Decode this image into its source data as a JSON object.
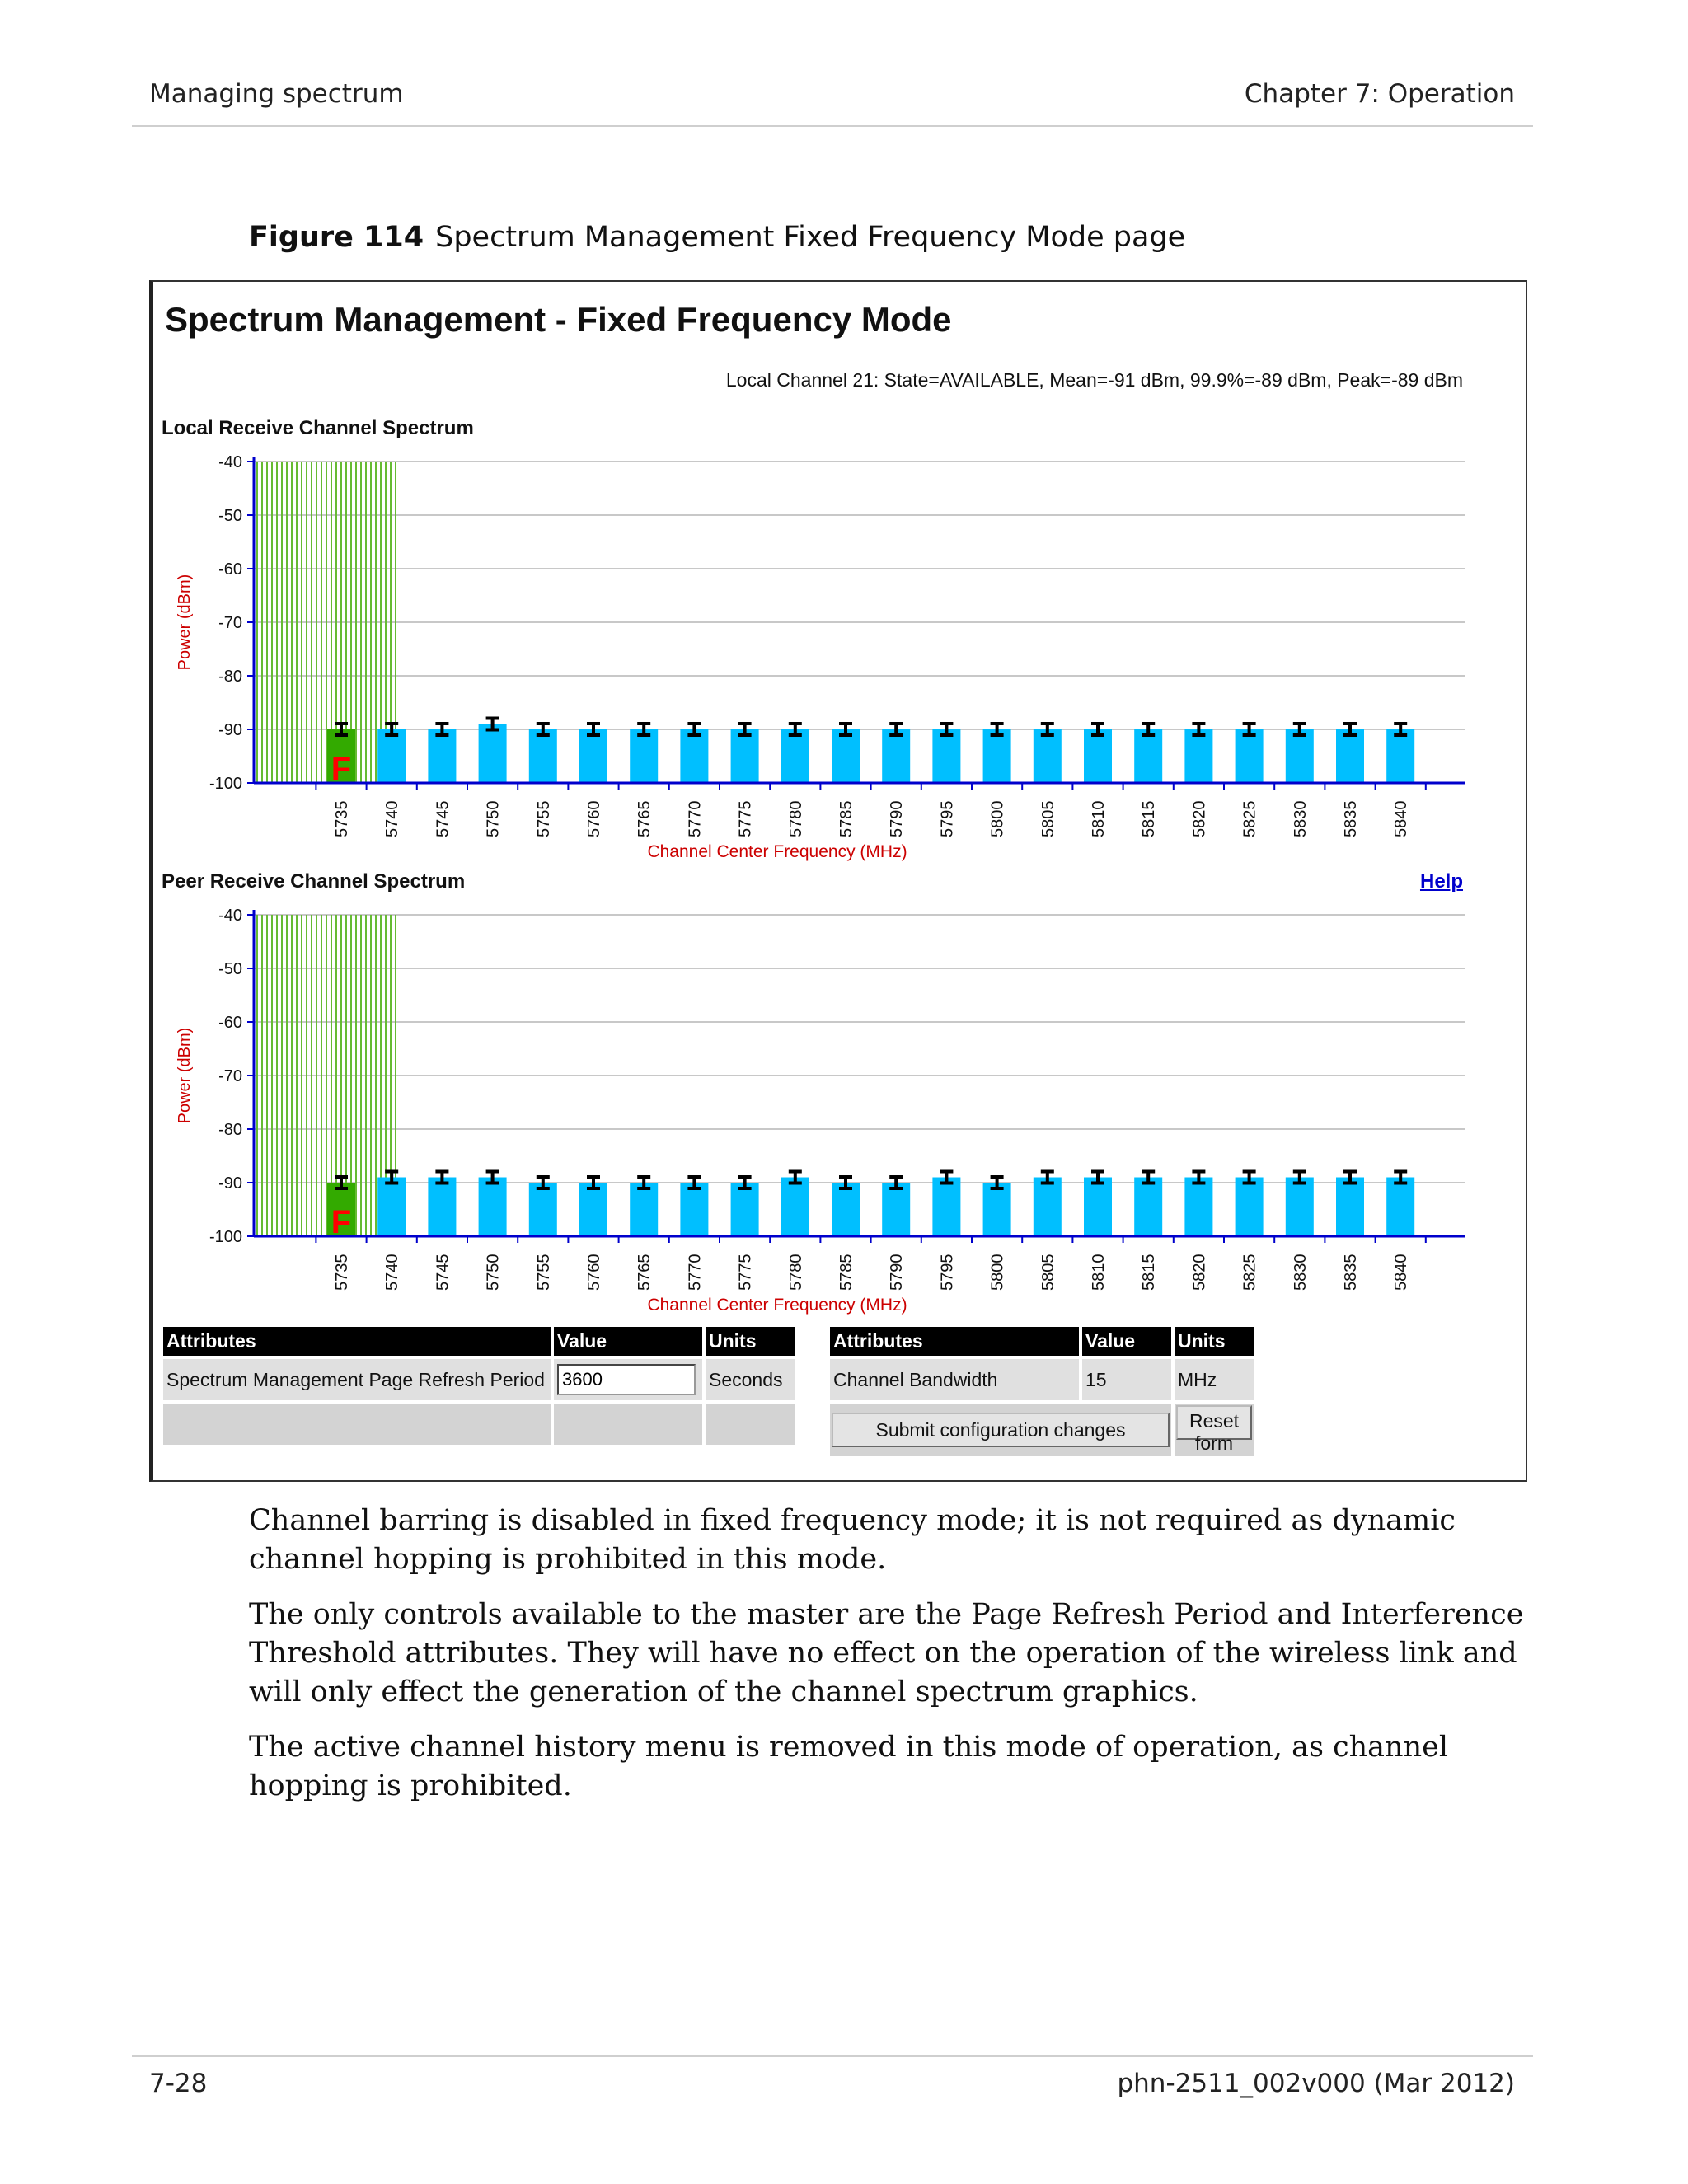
{
  "header": {
    "section": "Managing spectrum",
    "chapter": "Chapter 7:  Operation"
  },
  "figure": {
    "number": "Figure 114",
    "title": "Spectrum Management Fixed Frequency Mode page"
  },
  "ui": {
    "page_title": "Spectrum Management - Fixed Frequency Mode",
    "status_line": "Local Channel 21: State=AVAILABLE, Mean=-91 dBm, 99.9%=-89 dBm, Peak=-89 dBm",
    "help_label": "Help",
    "left_table": {
      "headers": [
        "Attributes",
        "Value",
        "Units"
      ],
      "row_label": "Spectrum Management Page Refresh Period",
      "row_value": "3600",
      "row_units": "Seconds"
    },
    "right_table": {
      "headers": [
        "Attributes",
        "Value",
        "Units"
      ],
      "row_label": "Channel Bandwidth",
      "row_value": "15",
      "row_units": "MHz",
      "submit_label": "Submit configuration changes",
      "reset_label": "Reset form"
    }
  },
  "chart_data": [
    {
      "type": "bar",
      "title": "Local Receive Channel Spectrum",
      "xlabel": "Channel Center Frequency (MHz)",
      "ylabel": "Power (dBm)",
      "ylim": [
        -100,
        -40
      ],
      "yticks": [
        "-40",
        "-50",
        "-60",
        "-70",
        "-80",
        "-90",
        "-100"
      ],
      "categories": [
        "5735",
        "5740",
        "5745",
        "5750",
        "5755",
        "5760",
        "5765",
        "5770",
        "5775",
        "5780",
        "5785",
        "5790",
        "5795",
        "5800",
        "5805",
        "5810",
        "5815",
        "5820",
        "5825",
        "5830",
        "5835",
        "5840"
      ],
      "values": [
        -90,
        -90,
        -90,
        -89,
        -90,
        -90,
        -90,
        -90,
        -90,
        -90,
        -90,
        -90,
        -90,
        -90,
        -90,
        -90,
        -90,
        -90,
        -90,
        -90,
        -90,
        -90
      ],
      "active_channel": "5735",
      "active_marker": "F",
      "colors": {
        "bar": "#00bfff",
        "active": "#33aa00",
        "barred_region": "#66bb33",
        "marker": "#ff0000",
        "axis": "#0000cc",
        "label": "#cc0000"
      }
    },
    {
      "type": "bar",
      "title": "Peer Receive Channel Spectrum",
      "xlabel": "Channel Center Frequency (MHz)",
      "ylabel": "Power (dBm)",
      "ylim": [
        -100,
        -40
      ],
      "yticks": [
        "-40",
        "-50",
        "-60",
        "-70",
        "-80",
        "-90",
        "-100"
      ],
      "categories": [
        "5735",
        "5740",
        "5745",
        "5750",
        "5755",
        "5760",
        "5765",
        "5770",
        "5775",
        "5780",
        "5785",
        "5790",
        "5795",
        "5800",
        "5805",
        "5810",
        "5815",
        "5820",
        "5825",
        "5830",
        "5835",
        "5840"
      ],
      "values": [
        -90,
        -89,
        -89,
        -89,
        -90,
        -90,
        -90,
        -90,
        -90,
        -89,
        -90,
        -90,
        -89,
        -90,
        -89,
        -89,
        -89,
        -89,
        -89,
        -89,
        -89,
        -89
      ],
      "active_channel": "5735",
      "active_marker": "F",
      "colors": {
        "bar": "#00bfff",
        "active": "#33aa00",
        "barred_region": "#66bb33",
        "marker": "#ff0000",
        "axis": "#0000cc",
        "label": "#cc0000"
      }
    }
  ],
  "paragraphs": [
    "Channel barring is disabled in fixed frequency mode; it is not required as dynamic channel hopping is prohibited in this mode.",
    "The only controls available to the master are the Page Refresh Period and Interference Threshold attributes. They will have no effect on the operation of the wireless link and will only effect the generation of the channel spectrum graphics.",
    "The active channel history menu is removed in this mode of operation, as channel hopping is prohibited."
  ],
  "footer": {
    "page": "7-28",
    "doc_id": "phn-2511_002v000 (Mar 2012)"
  }
}
